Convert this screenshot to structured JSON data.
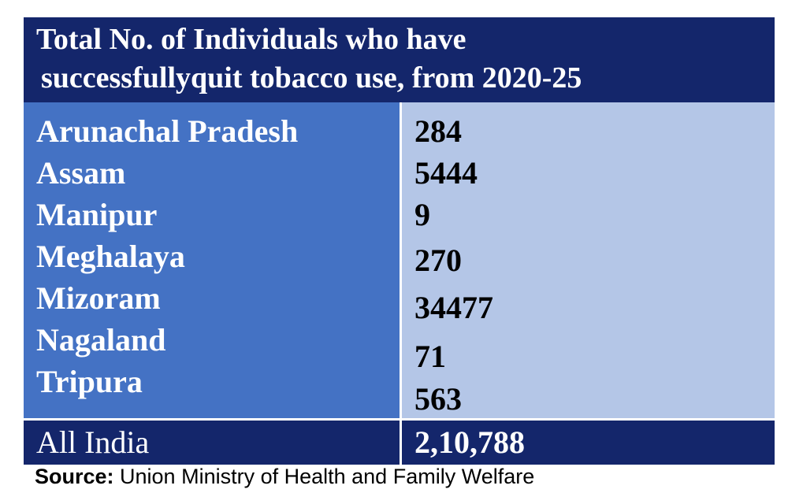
{
  "title": {
    "line1": "Total No. of Individuals who have",
    "line2": "successfullyquit tobacco use, from 2020-25"
  },
  "states": [
    "Arunachal Pradesh",
    "Assam",
    "Manipur",
    "Meghalaya",
    "Mizoram",
    "Nagaland",
    "Tripura"
  ],
  "values": [
    "284",
    "5444",
    "9",
    "270",
    "34477",
    "71",
    "563"
  ],
  "total": {
    "label": "All India",
    "value": "2,10,788"
  },
  "source": {
    "label": "Source:",
    "text": " Union Ministry of Health and Family Welfare"
  },
  "colors": {
    "header_bg": "#14266b",
    "state_col_bg": "#4472c4",
    "value_col_bg": "#b4c6e7"
  }
}
